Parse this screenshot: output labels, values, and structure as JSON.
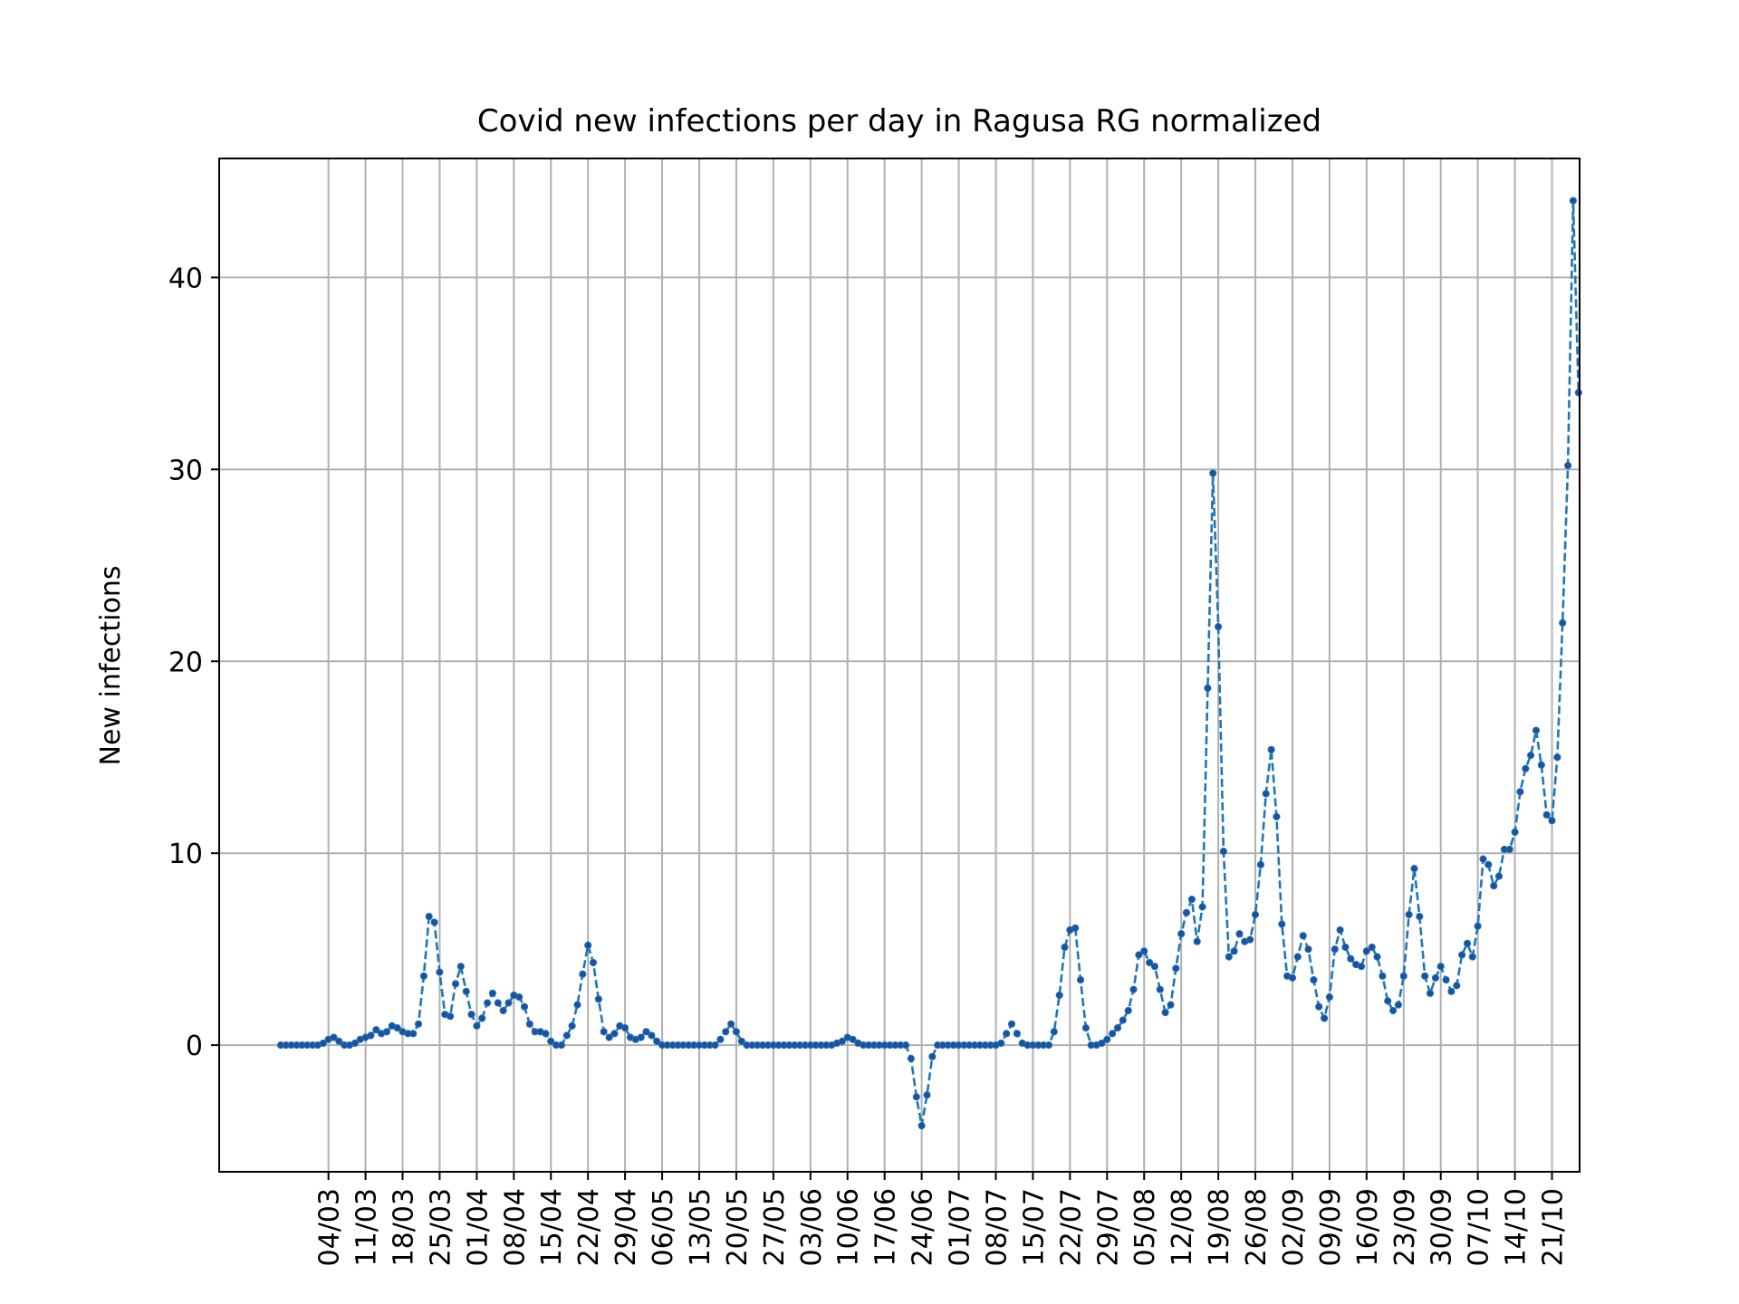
{
  "chart_data": {
    "type": "line",
    "title": "Covid new infections per day in Ragusa RG normalized",
    "xlabel": "",
    "ylabel": "New infections",
    "ylim": [
      -6.6,
      46.2
    ],
    "yticks": [
      0,
      10,
      20,
      30,
      40
    ],
    "x_tick_labels": [
      "04/03",
      "11/03",
      "18/03",
      "25/03",
      "01/04",
      "08/04",
      "15/04",
      "22/04",
      "29/04",
      "06/05",
      "13/05",
      "20/05",
      "27/05",
      "03/06",
      "10/06",
      "17/06",
      "24/06",
      "01/07",
      "08/07",
      "15/07",
      "22/07",
      "29/07",
      "05/08",
      "12/08",
      "19/08",
      "26/08",
      "02/09",
      "09/09",
      "16/09",
      "23/09",
      "30/09",
      "07/10",
      "14/10",
      "21/10"
    ],
    "grid": true,
    "colors": {
      "line": "#1f77b4",
      "marker": "#1f4fa0",
      "grid": "#b0b0b0",
      "axes": "#000000"
    },
    "series": [
      {
        "start_date": "2020-02-24",
        "values": [
          0,
          0,
          0,
          0,
          0,
          0,
          0,
          0,
          0.1,
          0.3,
          0.4,
          0.2,
          0,
          0,
          0.1,
          0.3,
          0.4,
          0.5,
          0.8,
          0.6,
          0.7,
          1,
          0.9,
          0.7,
          0.6,
          0.6,
          1.1,
          3.6,
          6.7,
          6.4,
          3.8,
          1.6,
          1.5,
          3.2,
          4.1,
          2.8,
          1.6,
          1,
          1.4,
          2.2,
          2.7,
          2.2,
          1.8,
          2.2,
          2.6,
          2.5,
          2,
          1.1,
          0.7,
          0.7,
          0.6,
          0.2,
          0,
          0,
          0.5,
          1,
          2.1,
          3.7,
          5.2,
          4.3,
          2.4,
          0.7,
          0.4,
          0.6,
          1,
          0.9,
          0.4,
          0.3,
          0.4,
          0.7,
          0.5,
          0.2,
          0,
          0,
          0,
          0,
          0,
          0,
          0,
          0,
          0,
          0,
          0,
          0.3,
          0.7,
          1.1,
          0.7,
          0.2,
          0,
          0,
          0,
          0,
          0,
          0,
          0,
          0,
          0,
          0,
          0,
          0,
          0,
          0,
          0,
          0,
          0,
          0.1,
          0.2,
          0.4,
          0.3,
          0.1,
          0,
          0,
          0,
          0,
          0,
          0,
          0,
          0,
          0,
          -0.7,
          -2.7,
          -4.2,
          -2.6,
          -0.6,
          0,
          0,
          0,
          0,
          0,
          0,
          0,
          0,
          0,
          0,
          0,
          0,
          0.1,
          0.6,
          1.1,
          0.6,
          0.1,
          0,
          0,
          0,
          0,
          0,
          0.7,
          2.6,
          5.1,
          6,
          6.1,
          3.4,
          0.9,
          0,
          0,
          0.1,
          0.3,
          0.6,
          0.9,
          1.3,
          1.8,
          2.9,
          4.7,
          4.9,
          4.3,
          4.1,
          2.9,
          1.7,
          2.1,
          4,
          5.8,
          6.9,
          7.6,
          5.4,
          7.2,
          18.6,
          29.8,
          21.8,
          10.1,
          4.6,
          4.9,
          5.8,
          5.4,
          5.5,
          6.8,
          9.4,
          13.1,
          15.4,
          11.9,
          6.3,
          3.6,
          3.5,
          4.6,
          5.7,
          5,
          3.4,
          2,
          1.4,
          2.5,
          5,
          6,
          5.1,
          4.5,
          4.2,
          4.1,
          4.9,
          5.1,
          4.6,
          3.6,
          2.3,
          1.8,
          2.1,
          3.6,
          6.8,
          9.2,
          6.7,
          3.6,
          2.7,
          3.5,
          4.1,
          3.4,
          2.8,
          3.1,
          4.7,
          5.3,
          4.6,
          6.2,
          9.7,
          9.4,
          8.3,
          8.8,
          10.2,
          10.2,
          11.1,
          13.2,
          14.4,
          15.1,
          16.4,
          14.6,
          12,
          11.7,
          15,
          22,
          30.2,
          44,
          34
        ]
      }
    ]
  }
}
